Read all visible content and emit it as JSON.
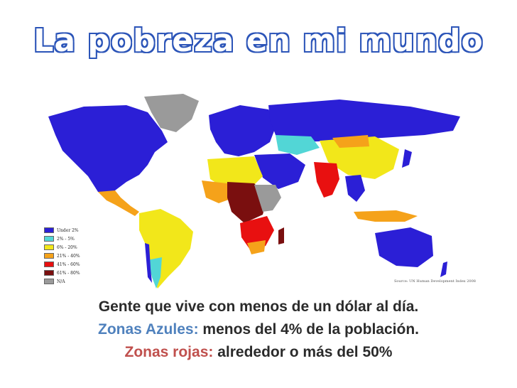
{
  "title": "La pobreza en mi mundo",
  "map": {
    "legend": [
      {
        "label": "Under 2%",
        "color": "#2b1fd6"
      },
      {
        "label": "2% - 5%",
        "color": "#52d6d6"
      },
      {
        "label": "6% - 20%",
        "color": "#f2e71a"
      },
      {
        "label": "21% - 40%",
        "color": "#f5a21a"
      },
      {
        "label": "41% - 60%",
        "color": "#e81010"
      },
      {
        "label": "61% - 80%",
        "color": "#7a0f0f"
      },
      {
        "label": "N/A",
        "color": "#9a9a9a"
      }
    ],
    "source": "Source: UN Human Development Index 2008"
  },
  "caption": {
    "line1": "Gente que vive con menos de un dólar al día.",
    "line2_highlight": "Zonas Azules:",
    "line2_rest": " menos del 4% de la población.",
    "line3_highlight": "Zonas rojas:",
    "line3_rest": " alrededor o más del 50%"
  }
}
